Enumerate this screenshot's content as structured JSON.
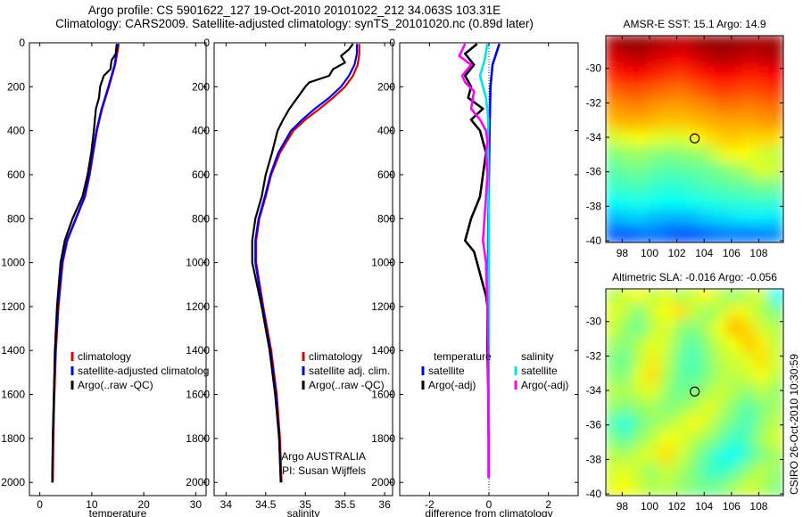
{
  "header": {
    "line1": "Argo profile: CS 5901622_127 19-Oct-2010 20101022_212 34.063S 103.31E",
    "line2": "Climatology: CARS2009. Satellite-adjusted climatology: synTS_20101020.nc (0.89d later)"
  },
  "side_label": "CSIRO 26-Oct-2010 10:30:59",
  "colors": {
    "red": "#dd0000",
    "blue": "#0000ee",
    "black": "#000000",
    "cyan": "#00e5e5",
    "magenta": "#ff00ff"
  },
  "chart_data": [
    {
      "type": "line",
      "id": "temperature",
      "xlabel": "temperature",
      "xticks": [
        0,
        10,
        20,
        30
      ],
      "yticks": [
        0,
        200,
        400,
        600,
        800,
        1000,
        1200,
        1400,
        1600,
        1800,
        2000
      ],
      "xlim": [
        -2,
        32
      ],
      "ylim": [
        0,
        2060
      ],
      "y_reversed": true,
      "legend": [
        "climatology",
        "satellite-adjusted climatolog",
        "Argo(..raw -QC)"
      ],
      "series": [
        {
          "name": "climatology",
          "color": "red",
          "depth": [
            5,
            100,
            200,
            300,
            400,
            500,
            600,
            700,
            800,
            900,
            1000,
            1200,
            1400,
            1600,
            1800,
            2000
          ],
          "values": [
            15.2,
            14.5,
            13.3,
            12.0,
            11.0,
            10.3,
            9.6,
            8.7,
            7.0,
            5.3,
            4.4,
            3.6,
            3.1,
            2.8,
            2.6,
            2.5
          ]
        },
        {
          "name": "satellite-adjusted climatology",
          "color": "blue",
          "depth": [
            5,
            100,
            200,
            300,
            400,
            500,
            600,
            700,
            800,
            900,
            1000,
            1200,
            1400,
            1600,
            1800,
            2000
          ],
          "values": [
            15.0,
            14.4,
            13.2,
            11.9,
            10.9,
            10.2,
            9.5,
            8.6,
            6.9,
            5.2,
            4.3,
            3.5,
            3.0,
            2.7,
            2.5,
            2.4
          ]
        },
        {
          "name": "Argo(..raw -QC)",
          "color": "black",
          "depth": [
            5,
            50,
            80,
            120,
            150,
            200,
            250,
            300,
            400,
            500,
            600,
            700,
            800,
            900,
            1000,
            1200,
            1400,
            1600,
            1800,
            2000
          ],
          "values": [
            14.8,
            14.6,
            13.8,
            13.6,
            12.3,
            11.6,
            11.4,
            10.8,
            10.4,
            9.9,
            9.2,
            8.2,
            6.3,
            4.8,
            4.0,
            3.3,
            2.9,
            2.7,
            2.5,
            2.4
          ]
        }
      ]
    },
    {
      "type": "line",
      "id": "salinity",
      "xlabel": "salinity",
      "xticks": [
        34,
        34.5,
        35,
        35.5,
        36
      ],
      "xtick_labels": [
        "34",
        "34.5",
        "35",
        "35.5",
        "36"
      ],
      "yticks": [
        0,
        200,
        400,
        600,
        800,
        1000,
        1200,
        1400,
        1600,
        1800,
        2000
      ],
      "xlim": [
        33.85,
        36.1
      ],
      "ylim": [
        0,
        2060
      ],
      "y_reversed": true,
      "legend": [
        "climatology",
        "satellite adj. clim.",
        "Argo(..raw -QC)"
      ],
      "annotation": [
        "Argo AUSTRALIA",
        "PI: Susan Wijffels"
      ],
      "series": [
        {
          "name": "climatology",
          "color": "red",
          "depth": [
            5,
            50,
            100,
            150,
            200,
            250,
            300,
            350,
            400,
            500,
            600,
            700,
            800,
            900,
            1000,
            1200,
            1400,
            1600,
            1800,
            2000
          ],
          "values": [
            35.68,
            35.68,
            35.66,
            35.6,
            35.5,
            35.35,
            35.18,
            35.0,
            34.85,
            34.68,
            34.57,
            34.5,
            34.42,
            34.38,
            34.38,
            34.47,
            34.57,
            34.64,
            34.68,
            34.7
          ]
        },
        {
          "name": "satellite adj. clim.",
          "color": "blue",
          "depth": [
            5,
            50,
            100,
            150,
            200,
            250,
            300,
            350,
            400,
            500,
            600,
            700,
            800,
            900,
            1000,
            1200,
            1400,
            1600,
            1800,
            2000
          ],
          "values": [
            35.65,
            35.65,
            35.62,
            35.55,
            35.45,
            35.3,
            35.12,
            34.96,
            34.82,
            34.66,
            34.56,
            34.49,
            34.41,
            34.37,
            34.37,
            34.46,
            34.56,
            34.63,
            34.67,
            34.69
          ]
        },
        {
          "name": "Argo(..raw -QC)",
          "color": "black",
          "depth": [
            5,
            30,
            60,
            90,
            120,
            150,
            180,
            200,
            250,
            300,
            350,
            400,
            500,
            600,
            700,
            800,
            900,
            1000,
            1200,
            1400,
            1600,
            1800,
            2000
          ],
          "values": [
            35.6,
            35.55,
            35.45,
            35.5,
            35.35,
            35.3,
            35.05,
            35.0,
            34.9,
            34.8,
            34.72,
            34.65,
            34.58,
            34.5,
            34.45,
            34.37,
            34.33,
            34.33,
            34.45,
            34.55,
            34.62,
            34.67,
            34.69
          ]
        }
      ]
    },
    {
      "type": "line",
      "id": "difference",
      "xlabel": "difference from climatology",
      "xticks": [
        -2,
        0,
        2
      ],
      "yticks": [
        0,
        200,
        400,
        600,
        800,
        1000,
        1200,
        1400,
        1600,
        1800,
        2000
      ],
      "xlim": [
        -3.0,
        3.0
      ],
      "ylim": [
        0,
        2060
      ],
      "y_reversed": true,
      "legend_groups": [
        {
          "title": "temperature",
          "entries": [
            "satellite",
            "Argo(-adj)"
          ]
        },
        {
          "title": "salinity",
          "entries": [
            "satellite",
            "Argo(-adj)"
          ]
        }
      ],
      "series": [
        {
          "name": "temperature satellite",
          "color": "blue",
          "depth": [
            5,
            100,
            200,
            400,
            600,
            800,
            1000,
            1200,
            1400,
            1600,
            1800,
            1980
          ],
          "values": [
            0.35,
            0.12,
            0.05,
            0.02,
            0.0,
            -0.02,
            -0.03,
            -0.03,
            -0.02,
            -0.02,
            -0.01,
            -0.01
          ]
        },
        {
          "name": "temperature Argo(-adj)",
          "color": "black",
          "depth": [
            5,
            50,
            100,
            150,
            200,
            250,
            300,
            350,
            400,
            500,
            600,
            700,
            800,
            900,
            950,
            1000,
            1100,
            1150,
            1200,
            1400,
            1600,
            1800,
            1980
          ],
          "values": [
            -0.4,
            -0.8,
            -0.5,
            -0.8,
            -0.6,
            -0.7,
            -0.2,
            -0.6,
            -0.3,
            -0.1,
            -0.2,
            -0.3,
            -0.6,
            -0.8,
            -0.5,
            -0.4,
            -0.2,
            -0.1,
            -0.05,
            -0.05,
            -0.02,
            -0.01,
            -0.01
          ]
        },
        {
          "name": "salinity satellite",
          "color": "cyan",
          "depth": [
            5,
            80,
            150,
            250,
            350,
            450,
            600,
            800,
            1000,
            1200,
            1400,
            1600,
            1800,
            1980
          ],
          "values": [
            -0.05,
            -0.15,
            -0.3,
            -0.1,
            -0.02,
            -0.03,
            -0.02,
            -0.01,
            -0.01,
            -0.01,
            -0.01,
            -0.01,
            -0.01,
            -0.01
          ]
        },
        {
          "name": "salinity Argo(-adj)",
          "color": "magenta",
          "depth": [
            5,
            60,
            100,
            150,
            180,
            220,
            300,
            350,
            400,
            450,
            500,
            600,
            700,
            800,
            900,
            1000,
            1200,
            1400,
            1600,
            1800,
            1980
          ],
          "values": [
            -0.8,
            -1.0,
            -0.6,
            -0.9,
            -0.8,
            -0.5,
            -0.6,
            -0.3,
            -0.1,
            -0.05,
            -0.1,
            -0.05,
            -0.1,
            -0.15,
            -0.2,
            -0.1,
            -0.05,
            -0.03,
            -0.02,
            -0.01,
            -0.01
          ]
        }
      ]
    },
    {
      "type": "heatmap",
      "id": "sst-map",
      "title": "AMSR-E SST: 15.1 Argo: 14.9",
      "xticks": [
        98,
        100,
        102,
        104,
        106,
        108
      ],
      "yticks": [
        -30,
        -32,
        -34,
        -36,
        -38,
        -40
      ],
      "xlim": [
        96.8,
        109.8
      ],
      "ylim": [
        -40.1,
        -28.1
      ],
      "marker": {
        "lon": 103.31,
        "lat": -34.063
      },
      "colormap": "jet",
      "rows_north_to_south": [
        [
          0.96,
          0.98,
          0.99,
          0.97,
          0.95,
          0.94,
          0.96,
          0.98,
          0.99,
          0.98,
          0.97,
          0.96,
          0.98
        ],
        [
          0.9,
          0.92,
          0.94,
          0.91,
          0.9,
          0.88,
          0.91,
          0.93,
          0.95,
          0.94,
          0.92,
          0.93,
          0.95
        ],
        [
          0.84,
          0.86,
          0.88,
          0.85,
          0.83,
          0.82,
          0.84,
          0.86,
          0.88,
          0.87,
          0.85,
          0.86,
          0.88
        ],
        [
          0.78,
          0.79,
          0.8,
          0.78,
          0.77,
          0.76,
          0.78,
          0.8,
          0.82,
          0.81,
          0.8,
          0.81,
          0.83
        ],
        [
          0.73,
          0.74,
          0.75,
          0.73,
          0.72,
          0.72,
          0.73,
          0.74,
          0.76,
          0.76,
          0.75,
          0.76,
          0.77
        ],
        [
          0.69,
          0.7,
          0.7,
          0.69,
          0.68,
          0.68,
          0.69,
          0.7,
          0.71,
          0.71,
          0.71,
          0.72,
          0.73
        ],
        [
          0.58,
          0.6,
          0.62,
          0.6,
          0.59,
          0.58,
          0.62,
          0.65,
          0.67,
          0.68,
          0.66,
          0.67,
          0.66
        ],
        [
          0.5,
          0.52,
          0.53,
          0.51,
          0.5,
          0.51,
          0.52,
          0.54,
          0.6,
          0.63,
          0.62,
          0.58,
          0.56
        ],
        [
          0.46,
          0.48,
          0.49,
          0.47,
          0.46,
          0.46,
          0.47,
          0.48,
          0.5,
          0.52,
          0.55,
          0.6,
          0.57
        ],
        [
          0.43,
          0.44,
          0.45,
          0.43,
          0.42,
          0.42,
          0.44,
          0.45,
          0.46,
          0.47,
          0.48,
          0.5,
          0.49
        ],
        [
          0.38,
          0.39,
          0.4,
          0.39,
          0.38,
          0.38,
          0.39,
          0.4,
          0.41,
          0.42,
          0.42,
          0.43,
          0.42
        ],
        [
          0.3,
          0.32,
          0.33,
          0.31,
          0.3,
          0.3,
          0.31,
          0.33,
          0.34,
          0.35,
          0.36,
          0.36,
          0.35
        ],
        [
          0.22,
          0.21,
          0.23,
          0.24,
          0.22,
          0.2,
          0.21,
          0.23,
          0.24,
          0.25,
          0.24,
          0.25,
          0.26
        ]
      ]
    },
    {
      "type": "heatmap",
      "id": "sla-map",
      "title": "Altimetric SLA: -0.016 Argo: -0.056",
      "xticks": [
        98,
        100,
        102,
        104,
        106,
        108
      ],
      "yticks": [
        -30,
        -32,
        -34,
        -36,
        -38,
        -40
      ],
      "xlim": [
        96.8,
        109.8
      ],
      "ylim": [
        -40.1,
        -28.1
      ],
      "marker": {
        "lon": 103.31,
        "lat": -34.063
      },
      "colormap": "jet",
      "rows_north_to_south": [
        [
          0.55,
          0.58,
          0.62,
          0.56,
          0.6,
          0.54,
          0.58,
          0.62,
          0.55,
          0.52,
          0.56,
          0.58,
          0.38
        ],
        [
          0.6,
          0.56,
          0.5,
          0.58,
          0.62,
          0.66,
          0.57,
          0.52,
          0.56,
          0.64,
          0.6,
          0.54,
          0.5
        ],
        [
          0.58,
          0.52,
          0.48,
          0.56,
          0.6,
          0.52,
          0.5,
          0.55,
          0.62,
          0.7,
          0.66,
          0.58,
          0.55
        ],
        [
          0.54,
          0.5,
          0.55,
          0.6,
          0.58,
          0.5,
          0.46,
          0.52,
          0.58,
          0.62,
          0.68,
          0.64,
          0.56
        ],
        [
          0.5,
          0.48,
          0.56,
          0.64,
          0.56,
          0.48,
          0.44,
          0.5,
          0.56,
          0.58,
          0.6,
          0.66,
          0.58
        ],
        [
          0.52,
          0.5,
          0.6,
          0.66,
          0.55,
          0.47,
          0.46,
          0.5,
          0.55,
          0.56,
          0.58,
          0.62,
          0.56
        ],
        [
          0.56,
          0.54,
          0.58,
          0.6,
          0.52,
          0.48,
          0.5,
          0.54,
          0.58,
          0.54,
          0.52,
          0.56,
          0.52
        ],
        [
          0.52,
          0.5,
          0.52,
          0.54,
          0.5,
          0.52,
          0.55,
          0.6,
          0.56,
          0.5,
          0.46,
          0.5,
          0.54
        ],
        [
          0.46,
          0.4,
          0.48,
          0.52,
          0.55,
          0.58,
          0.62,
          0.58,
          0.52,
          0.48,
          0.44,
          0.52,
          0.56
        ],
        [
          0.5,
          0.46,
          0.52,
          0.56,
          0.62,
          0.6,
          0.56,
          0.52,
          0.48,
          0.42,
          0.46,
          0.54,
          0.58
        ],
        [
          0.56,
          0.54,
          0.58,
          0.6,
          0.66,
          0.58,
          0.52,
          0.46,
          0.4,
          0.38,
          0.44,
          0.5,
          0.54
        ],
        [
          0.58,
          0.6,
          0.56,
          0.52,
          0.58,
          0.54,
          0.5,
          0.44,
          0.42,
          0.46,
          0.52,
          0.56,
          0.52
        ],
        [
          0.6,
          0.62,
          0.58,
          0.54,
          0.56,
          0.52,
          0.5,
          0.48,
          0.5,
          0.54,
          0.58,
          0.55,
          0.5
        ]
      ]
    }
  ]
}
